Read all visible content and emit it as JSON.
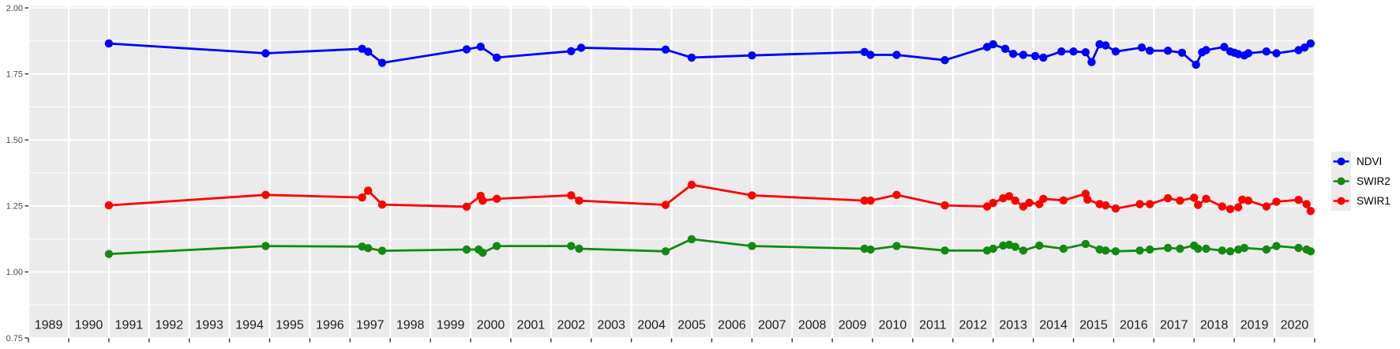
{
  "figure": {
    "background_color": "#ffffff",
    "panel_color": "#ebebeb",
    "grid_color": "#ffffff",
    "axis_text_color": "#4d4d4d",
    "x_label_text_color": "#1f1f1f",
    "tick_mark_color": "#333333"
  },
  "chart_data": {
    "type": "line",
    "title": "",
    "xlabel": "",
    "ylabel": "",
    "x_axis": {
      "range": [
        1989.0,
        2021.03
      ],
      "tick_years": [
        1989,
        1990,
        1991,
        1992,
        1993,
        1994,
        1995,
        1996,
        1997,
        1998,
        1999,
        2000,
        2001,
        2002,
        2003,
        2004,
        2005,
        2006,
        2007,
        2008,
        2009,
        2010,
        2011,
        2012,
        2013,
        2014,
        2015,
        2016,
        2017,
        2018,
        2019,
        2020
      ],
      "tick_labels": [
        "1989",
        "1990",
        "1991",
        "1992",
        "1993",
        "1994",
        "1995",
        "1996",
        "1997",
        "1998",
        "1999",
        "2000",
        "2001",
        "2002",
        "2003",
        "2004",
        "2005",
        "2006",
        "2007",
        "2008",
        "2009",
        "2010",
        "2011",
        "2012",
        "2013",
        "2014",
        "2015",
        "2016",
        "2017",
        "2018",
        "2019",
        "2020"
      ]
    },
    "y_axis": {
      "range": [
        0.75,
        2.0
      ],
      "tick_values": [
        2.0,
        1.75,
        1.5,
        1.25,
        1.0,
        0.75
      ],
      "tick_labels": [
        "2.00",
        "1.75",
        "1.50",
        "1.25",
        "1.00",
        "0.75"
      ],
      "minor_tick_values": [
        1.875,
        1.625,
        1.375,
        1.125,
        0.875
      ]
    },
    "grid": {
      "major": true,
      "minor_horizontal": true,
      "style": "white lines on gray panel"
    },
    "legend": {
      "position": "right-center",
      "entries": [
        "NDVI",
        "SWIR2",
        "SWIR1"
      ]
    },
    "series": [
      {
        "name": "NDVI",
        "color": "#0000ff",
        "x": [
          1991.0,
          1994.9,
          1997.3,
          1997.45,
          1997.8,
          1999.9,
          2000.25,
          2000.65,
          2002.5,
          2002.75,
          2004.85,
          2005.5,
          2007.0,
          2009.8,
          2009.95,
          2010.6,
          2011.8,
          2012.85,
          2013.0,
          2013.3,
          2013.5,
          2013.75,
          2014.05,
          2014.25,
          2014.7,
          2015.0,
          2015.3,
          2015.45,
          2015.65,
          2015.8,
          2016.05,
          2016.7,
          2016.9,
          2017.35,
          2017.7,
          2018.05,
          2018.2,
          2018.3,
          2018.75,
          2018.9,
          2019.0,
          2019.1,
          2019.25,
          2019.35,
          2019.8,
          2020.05,
          2020.6,
          2020.75,
          2020.9
        ],
        "y": [
          1.865,
          1.828,
          1.845,
          1.834,
          1.792,
          1.843,
          1.853,
          1.812,
          1.836,
          1.849,
          1.842,
          1.812,
          1.82,
          1.833,
          1.822,
          1.822,
          1.802,
          1.852,
          1.862,
          1.845,
          1.826,
          1.822,
          1.818,
          1.812,
          1.835,
          1.835,
          1.832,
          1.795,
          1.862,
          1.858,
          1.835,
          1.85,
          1.838,
          1.838,
          1.83,
          1.785,
          1.832,
          1.84,
          1.852,
          1.835,
          1.83,
          1.825,
          1.82,
          1.828,
          1.835,
          1.828,
          1.84,
          1.85,
          1.865
        ]
      },
      {
        "name": "SWIR2",
        "color": "#128a12",
        "x": [
          1991.0,
          1994.9,
          1997.3,
          1997.45,
          1997.8,
          1999.9,
          2000.2,
          2000.3,
          2000.65,
          2002.5,
          2002.7,
          2004.85,
          2005.5,
          2007.0,
          2009.8,
          2009.95,
          2010.6,
          2011.8,
          2012.85,
          2013.0,
          2013.25,
          2013.4,
          2013.55,
          2013.75,
          2014.15,
          2014.75,
          2015.3,
          2015.65,
          2015.8,
          2016.05,
          2016.65,
          2016.9,
          2017.35,
          2017.65,
          2018.0,
          2018.1,
          2018.3,
          2018.7,
          2018.9,
          2019.1,
          2019.25,
          2019.8,
          2020.05,
          2020.6,
          2020.8,
          2020.9
        ],
        "y": [
          1.068,
          1.098,
          1.096,
          1.09,
          1.08,
          1.085,
          1.085,
          1.073,
          1.098,
          1.098,
          1.088,
          1.078,
          1.124,
          1.098,
          1.088,
          1.085,
          1.098,
          1.081,
          1.081,
          1.088,
          1.1,
          1.103,
          1.095,
          1.081,
          1.1,
          1.088,
          1.106,
          1.085,
          1.081,
          1.078,
          1.081,
          1.085,
          1.091,
          1.088,
          1.1,
          1.088,
          1.088,
          1.081,
          1.078,
          1.085,
          1.091,
          1.085,
          1.098,
          1.091,
          1.085,
          1.078
        ]
      },
      {
        "name": "SWIR1",
        "color": "#ff0000",
        "x": [
          1991.0,
          1994.9,
          1997.3,
          1997.45,
          1997.8,
          1999.9,
          2000.25,
          2000.3,
          2000.65,
          2002.5,
          2002.7,
          2004.85,
          2005.5,
          2007.0,
          2009.8,
          2009.95,
          2010.6,
          2011.8,
          2012.85,
          2013.0,
          2013.25,
          2013.4,
          2013.55,
          2013.75,
          2013.9,
          2014.15,
          2014.25,
          2014.75,
          2015.3,
          2015.35,
          2015.65,
          2015.8,
          2016.05,
          2016.65,
          2016.9,
          2017.35,
          2017.65,
          2018.0,
          2018.1,
          2018.3,
          2018.7,
          2018.9,
          2019.1,
          2019.2,
          2019.35,
          2019.8,
          2020.05,
          2020.6,
          2020.8,
          2020.9
        ],
        "y": [
          1.252,
          1.292,
          1.282,
          1.308,
          1.255,
          1.247,
          1.288,
          1.27,
          1.277,
          1.29,
          1.27,
          1.254,
          1.33,
          1.29,
          1.27,
          1.27,
          1.292,
          1.252,
          1.248,
          1.261,
          1.279,
          1.287,
          1.27,
          1.248,
          1.262,
          1.257,
          1.277,
          1.271,
          1.296,
          1.274,
          1.257,
          1.252,
          1.24,
          1.257,
          1.257,
          1.279,
          1.27,
          1.281,
          1.254,
          1.277,
          1.248,
          1.238,
          1.245,
          1.274,
          1.27,
          1.248,
          1.266,
          1.273,
          1.257,
          1.231
        ]
      }
    ]
  }
}
